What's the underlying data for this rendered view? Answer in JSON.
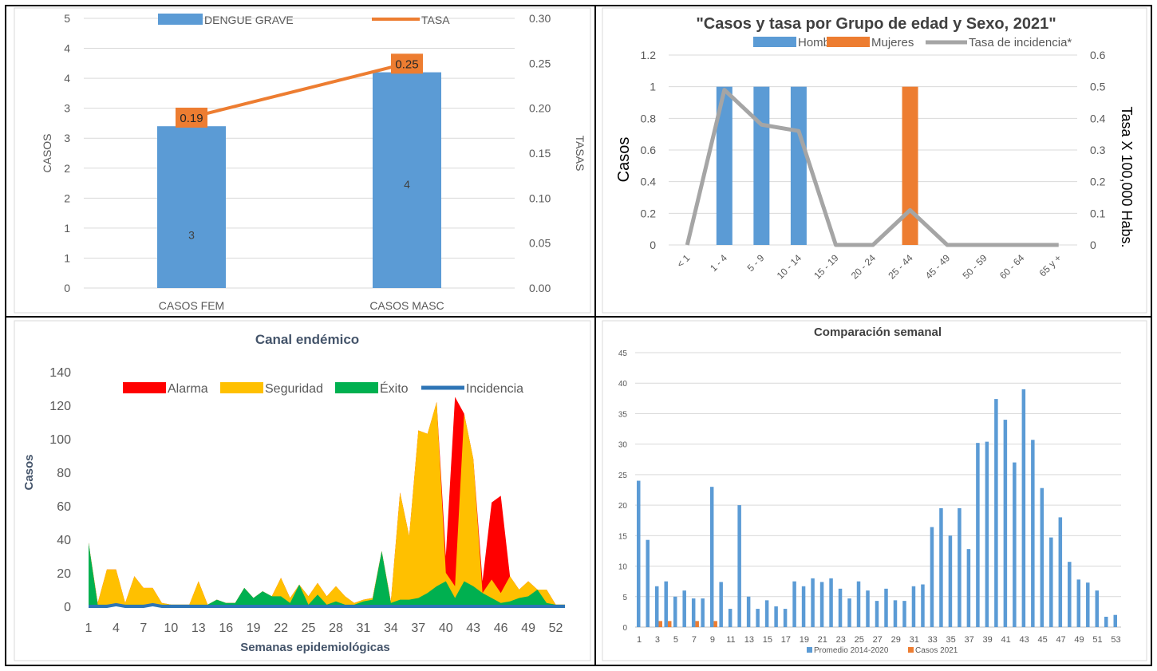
{
  "colors": {
    "blue": "#5B9BD5",
    "orange": "#ED7D31",
    "gray": "#A5A5A5",
    "red": "#FF0000",
    "yellow": "#FFC000",
    "green": "#00B050",
    "darkblue": "#2E75B6",
    "title": "#404040",
    "axis": "#595959"
  },
  "chart_data": [
    {
      "type": "bar",
      "title": "",
      "categories": [
        "CASOS FEM",
        "CASOS MASC"
      ],
      "series": [
        {
          "name": "DENGUE GRAVE",
          "values": [
            3,
            4
          ],
          "data_labels": [
            "3",
            "4"
          ]
        },
        {
          "name": "TASA",
          "type": "line",
          "axis": "secondary",
          "values": [
            0.19,
            0.25
          ],
          "data_labels": [
            "0.19",
            "0.25"
          ]
        }
      ],
      "ylabel": "CASOS",
      "y2label": "TASAS",
      "ylim": [
        0,
        5
      ],
      "y2lim": [
        0,
        0.3
      ],
      "yticks": [
        "0",
        "1",
        "1",
        "2",
        "2",
        "3",
        "3",
        "4",
        "4",
        "5"
      ],
      "y2ticks": [
        "0.00",
        "0.05",
        "0.10",
        "0.15",
        "0.20",
        "0.25",
        "0.30"
      ],
      "grid": true,
      "legend": "top"
    },
    {
      "type": "bar",
      "title": "\"Casos y tasa por Grupo de edad y Sexo, 2021\"",
      "categories": [
        "< 1",
        "1 - 4",
        "5 - 9",
        "10 - 14",
        "15 - 19",
        "20 - 24",
        "25 - 44",
        "45 - 49",
        "50 - 59",
        "60 - 64",
        "65 y +"
      ],
      "series": [
        {
          "name": "Hombres",
          "values": [
            0,
            1,
            1,
            1,
            0,
            0,
            0,
            0,
            0,
            0,
            0
          ]
        },
        {
          "name": "Mujeres",
          "values": [
            0,
            0,
            0,
            0,
            0,
            0,
            1,
            0,
            0,
            0,
            0
          ]
        },
        {
          "name": "Tasa de incidencia*",
          "type": "line",
          "axis": "secondary",
          "values": [
            0,
            0.49,
            0.38,
            0.36,
            0,
            0,
            0.11,
            0,
            0,
            0,
            0
          ]
        }
      ],
      "ylabel": "Casos",
      "y2label": "Tasa X 100,000 Habs.",
      "ylim": [
        0,
        1.2
      ],
      "y2lim": [
        0,
        0.6
      ],
      "yticks": [
        "0",
        "0.2",
        "0.4",
        "0.6",
        "0.8",
        "1",
        "1.2"
      ],
      "y2ticks": [
        "0",
        "0.1",
        "0.2",
        "0.3",
        "0.4",
        "0.5",
        "0.6"
      ],
      "grid": true,
      "legend": "top"
    },
    {
      "type": "area",
      "title": "Canal endémico",
      "xlabel": "Semanas epidemiológicas",
      "ylabel": "Casos",
      "x": [
        1,
        2,
        3,
        4,
        5,
        6,
        7,
        8,
        9,
        10,
        11,
        12,
        13,
        14,
        15,
        16,
        17,
        18,
        19,
        20,
        21,
        22,
        23,
        24,
        25,
        26,
        27,
        28,
        29,
        30,
        31,
        32,
        33,
        34,
        35,
        36,
        37,
        38,
        39,
        40,
        41,
        42,
        43,
        44,
        45,
        46,
        47,
        48,
        49,
        50,
        51,
        52,
        53
      ],
      "xticks": [
        "1",
        "4",
        "7",
        "10",
        "13",
        "16",
        "19",
        "22",
        "25",
        "28",
        "31",
        "34",
        "37",
        "40",
        "43",
        "46",
        "49",
        "52"
      ],
      "yticks": [
        "0",
        "20",
        "40",
        "60",
        "80",
        "100",
        "120",
        "140"
      ],
      "ylim": [
        0,
        140
      ],
      "series": [
        {
          "name": "Alarma",
          "values": [
            38,
            2,
            22,
            22,
            2,
            18,
            11,
            11,
            2,
            1,
            1,
            1,
            15,
            1,
            4,
            2,
            2,
            11,
            5,
            9,
            6,
            17,
            5,
            13,
            6,
            14,
            6,
            12,
            6,
            2,
            4,
            5,
            33,
            3,
            68,
            42,
            105,
            103,
            122,
            30,
            125,
            115,
            88,
            15,
            62,
            66,
            18,
            10,
            15,
            10,
            10,
            1,
            1
          ]
        },
        {
          "name": "Seguridad",
          "values": [
            38,
            2,
            22,
            22,
            2,
            18,
            11,
            11,
            2,
            1,
            1,
            1,
            15,
            1,
            4,
            2,
            2,
            11,
            5,
            9,
            6,
            17,
            5,
            13,
            6,
            14,
            6,
            12,
            6,
            2,
            4,
            5,
            33,
            3,
            68,
            42,
            105,
            103,
            122,
            20,
            12,
            115,
            88,
            8,
            16,
            8,
            18,
            10,
            15,
            10,
            10,
            1,
            1
          ]
        },
        {
          "name": "Éxito",
          "values": [
            38,
            1,
            1,
            1,
            1,
            1,
            1,
            1,
            1,
            1,
            1,
            1,
            1,
            1,
            4,
            2,
            2,
            11,
            5,
            9,
            6,
            6,
            2,
            13,
            1,
            7,
            1,
            3,
            1,
            1,
            3,
            4,
            33,
            2,
            4,
            4,
            5,
            8,
            12,
            15,
            5,
            15,
            12,
            8,
            5,
            2,
            3,
            5,
            6,
            10,
            2,
            1,
            1
          ]
        },
        {
          "name": "Incidencia",
          "values": [
            0,
            0,
            0,
            1,
            0,
            0,
            0,
            1,
            0,
            0,
            0,
            0,
            0,
            0,
            0,
            0,
            0,
            0,
            0,
            0,
            0,
            0,
            0,
            0,
            0,
            0,
            0,
            0,
            0,
            0,
            0,
            0,
            0,
            0,
            0,
            0,
            0,
            0,
            0,
            0,
            0,
            0,
            0,
            0,
            0,
            0,
            0,
            0,
            0,
            0,
            0,
            0,
            0
          ]
        }
      ],
      "legend": "top"
    },
    {
      "type": "bar",
      "title": "Comparación semanal",
      "categories": [
        1,
        2,
        3,
        4,
        5,
        6,
        7,
        8,
        9,
        10,
        11,
        12,
        13,
        14,
        15,
        16,
        17,
        18,
        19,
        20,
        21,
        22,
        23,
        24,
        25,
        26,
        27,
        28,
        29,
        30,
        31,
        32,
        33,
        34,
        35,
        36,
        37,
        38,
        39,
        40,
        41,
        42,
        43,
        44,
        45,
        46,
        47,
        48,
        49,
        50,
        51,
        52,
        53
      ],
      "xticks": [
        "1",
        "3",
        "5",
        "7",
        "9",
        "11",
        "13",
        "15",
        "17",
        "19",
        "21",
        "23",
        "25",
        "27",
        "29",
        "31",
        "33",
        "35",
        "37",
        "39",
        "41",
        "43",
        "45",
        "47",
        "49",
        "51",
        "53"
      ],
      "yticks": [
        "0",
        "5",
        "10",
        "15",
        "20",
        "25",
        "30",
        "35",
        "40",
        "45"
      ],
      "ylim": [
        0,
        45
      ],
      "series": [
        {
          "name": "Promedio 2014-2020",
          "values": [
            24,
            14.3,
            6.7,
            7.5,
            5,
            6,
            4.7,
            4.7,
            23,
            7.4,
            3,
            20,
            5,
            3,
            4.4,
            3.4,
            3,
            7.5,
            6.7,
            8,
            7.4,
            8,
            6.3,
            4.7,
            7.5,
            6,
            4.3,
            6.3,
            4.4,
            4.3,
            6.7,
            7,
            16.4,
            19.5,
            15,
            19.5,
            12.8,
            30.2,
            30.4,
            37.4,
            34,
            27,
            39,
            30.7,
            22.8,
            14.7,
            18,
            10.7,
            7.8,
            7.3,
            6,
            1.7,
            2
          ]
        },
        {
          "name": "Casos 2021",
          "values": [
            0,
            0,
            1,
            1,
            0,
            0,
            1,
            0,
            1,
            0,
            0,
            0,
            0,
            0,
            0,
            0,
            0,
            0,
            0,
            0,
            0,
            0,
            0,
            0,
            0,
            0,
            0,
            0,
            0,
            0,
            0,
            0,
            0,
            0,
            0,
            0,
            0,
            0,
            0,
            0,
            0,
            0,
            0,
            0,
            0,
            0,
            0,
            0,
            0,
            0,
            0,
            0,
            0
          ]
        }
      ],
      "legend": "bottom"
    }
  ]
}
